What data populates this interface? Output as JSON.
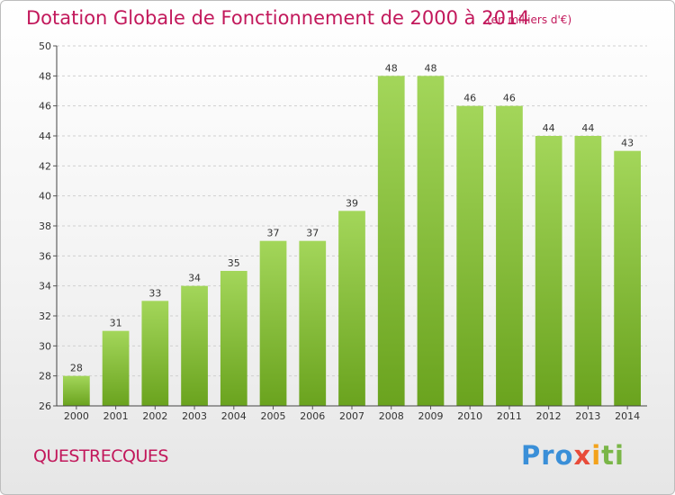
{
  "header": {
    "title": "Dotation Globale de Fonctionnement de 2000 à 2014",
    "unit": "(en milliers d'€)"
  },
  "footer": {
    "commune": "QUESTRECQUES",
    "logo": [
      "Pro",
      "x",
      "i",
      "ti"
    ]
  },
  "colors": {
    "bar_top": "#a3d65a",
    "bar_bottom": "#6aa31e",
    "text_accent": "#c2185b"
  },
  "chart_data": {
    "type": "bar",
    "title": "Dotation Globale de Fonctionnement de 2000 à 2014",
    "subtitle": "(en milliers d'€)",
    "categories": [
      "2000",
      "2001",
      "2002",
      "2003",
      "2004",
      "2005",
      "2006",
      "2007",
      "2008",
      "2009",
      "2010",
      "2011",
      "2012",
      "2013",
      "2014"
    ],
    "values": [
      28,
      31,
      33,
      34,
      35,
      37,
      37,
      39,
      48,
      48,
      46,
      46,
      44,
      44,
      43
    ],
    "ylim": [
      26,
      50
    ],
    "yticks": [
      26,
      28,
      30,
      32,
      34,
      36,
      38,
      40,
      42,
      44,
      46,
      48,
      50
    ],
    "grid": true
  }
}
